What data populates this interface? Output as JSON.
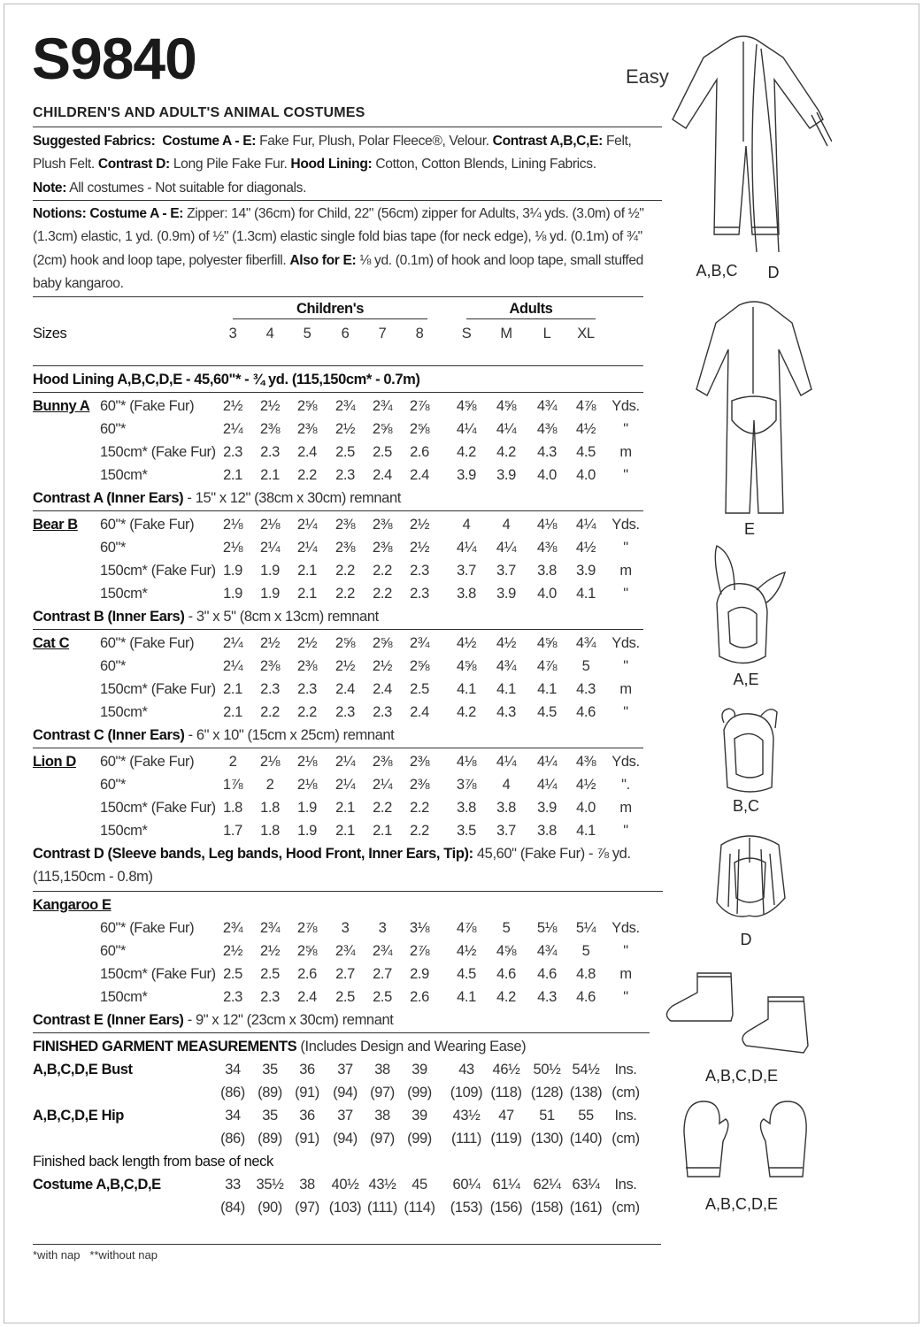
{
  "header": {
    "pattern_number": "S9840",
    "difficulty": "Easy",
    "title": "CHILDREN'S AND ADULT'S ANIMAL COSTUMES"
  },
  "fabrics": {
    "label": "Suggested Fabrics:",
    "costume_label": "Costume A - E:",
    "costume_text": " Fake Fur, Plush, Polar Fleece®, Velour. ",
    "contrast_ace_label": "Contrast A,B,C,E:",
    "contrast_ace_text": " Felt, Plush Felt. ",
    "contrast_d_label": "Contrast D:",
    "contrast_d_text": " Long Pile Fake Fur. ",
    "hood_label": "Hood Lining:",
    "hood_text": " Cotton, Cotton Blends, Lining Fabrics.",
    "note_label": "Note:",
    "note_text": " All costumes - Not suitable for diagonals."
  },
  "notions": {
    "label": "Notions:",
    "costume_label": "Costume A - E:",
    "text": " Zipper: 14\" (36cm) for Child, 22\" (56cm) zipper for Adults, 3¼ yds. (3.0m) of ½\" (1.3cm) elastic, 1 yd. (0.9m) of ½\" (1.3cm) elastic single fold bias tape (for neck edge), ⅛ yd. (0.1m) of ¾\" (2cm) hook and loop tape, polyester fiberfill. ",
    "also_label": "Also for E:",
    "also_text": " ⅛ yd. (0.1m) of hook and loop tape, small stuffed baby kangaroo."
  },
  "sizes": {
    "label": "Sizes",
    "children_label": "Children's",
    "adults_label": "Adults",
    "values": [
      "3",
      "4",
      "5",
      "6",
      "7",
      "8",
      "S",
      "M",
      "L",
      "XL"
    ]
  },
  "hood_lining": "Hood Lining A,B,C,D,E - 45,60\"* - ¾ yd. (115,150cm* - 0.7m)",
  "costumes": [
    {
      "name": "Bunny A",
      "rows": [
        {
          "fabric": "60\"* (Fake Fur)",
          "values": [
            "2½",
            "2½",
            "2⅝",
            "2¾",
            "2¾",
            "2⅞",
            "4⅝",
            "4⅝",
            "4¾",
            "4⅞"
          ],
          "unit": "Yds."
        },
        {
          "fabric": "60\"*",
          "values": [
            "2¼",
            "2⅜",
            "2⅜",
            "2½",
            "2⅝",
            "2⅝",
            "4¼",
            "4¼",
            "4⅜",
            "4½"
          ],
          "unit": "\""
        },
        {
          "fabric": "150cm* (Fake Fur)",
          "values": [
            "2.3",
            "2.3",
            "2.4",
            "2.5",
            "2.5",
            "2.6",
            "4.2",
            "4.2",
            "4.3",
            "4.5"
          ],
          "unit": "m"
        },
        {
          "fabric": "150cm*",
          "values": [
            "2.1",
            "2.1",
            "2.2",
            "2.3",
            "2.4",
            "2.4",
            "3.9",
            "3.9",
            "4.0",
            "4.0"
          ],
          "unit": "\""
        }
      ],
      "contrast": [
        "Contrast A (Inner Ears)",
        " - 15\" x 12\" (38cm x 30cm) remnant"
      ]
    },
    {
      "name": "Bear B",
      "rows": [
        {
          "fabric": "60\"* (Fake Fur)",
          "values": [
            "2⅛",
            "2⅛",
            "2¼",
            "2⅜",
            "2⅜",
            "2½",
            "4",
            "4",
            "4⅛",
            "4¼"
          ],
          "unit": "Yds."
        },
        {
          "fabric": "60\"*",
          "values": [
            "2⅛",
            "2¼",
            "2¼",
            "2⅜",
            "2⅜",
            "2½",
            "4¼",
            "4¼",
            "4⅜",
            "4½"
          ],
          "unit": "\""
        },
        {
          "fabric": "150cm* (Fake Fur)",
          "values": [
            "1.9",
            "1.9",
            "2.1",
            "2.2",
            "2.2",
            "2.3",
            "3.7",
            "3.7",
            "3.8",
            "3.9"
          ],
          "unit": "m"
        },
        {
          "fabric": "150cm*",
          "values": [
            "1.9",
            "1.9",
            "2.1",
            "2.2",
            "2.2",
            "2.3",
            "3.8",
            "3.9",
            "4.0",
            "4.1"
          ],
          "unit": "\""
        }
      ],
      "contrast": [
        "Contrast B (Inner Ears)",
        " - 3\" x 5\" (8cm x 13cm) remnant"
      ]
    },
    {
      "name": "Cat C",
      "rows": [
        {
          "fabric": "60\"* (Fake Fur)",
          "values": [
            "2¼",
            "2½",
            "2½",
            "2⅝",
            "2⅝",
            "2¾",
            "4½",
            "4½",
            "4⅝",
            "4¾"
          ],
          "unit": "Yds."
        },
        {
          "fabric": "60\"*",
          "values": [
            "2¼",
            "2⅜",
            "2⅜",
            "2½",
            "2½",
            "2⅝",
            "4⅝",
            "4¾",
            "4⅞",
            "5"
          ],
          "unit": "\""
        },
        {
          "fabric": "150cm* (Fake Fur)",
          "values": [
            "2.1",
            "2.3",
            "2.3",
            "2.4",
            "2.4",
            "2.5",
            "4.1",
            "4.1",
            "4.1",
            "4.3"
          ],
          "unit": "m"
        },
        {
          "fabric": "150cm*",
          "values": [
            "2.1",
            "2.2",
            "2.2",
            "2.3",
            "2.3",
            "2.4",
            "4.2",
            "4.3",
            "4.5",
            "4.6"
          ],
          "unit": "\""
        }
      ],
      "contrast": [
        "Contrast C (Inner Ears)",
        " - 6\" x 10\" (15cm x 25cm) remnant"
      ]
    },
    {
      "name": "Lion D",
      "rows": [
        {
          "fabric": "60\"* (Fake Fur)",
          "values": [
            "2",
            "2⅛",
            "2⅛",
            "2¼",
            "2⅜",
            "2⅜",
            "4⅛",
            "4¼",
            "4¼",
            "4⅜"
          ],
          "unit": "Yds."
        },
        {
          "fabric": "60\"*",
          "values": [
            "1⅞",
            "2",
            "2⅛",
            "2¼",
            "2¼",
            "2⅜",
            "3⅞",
            "4",
            "4¼",
            "4½"
          ],
          "unit": "\"."
        },
        {
          "fabric": "150cm* (Fake Fur)",
          "values": [
            "1.8",
            "1.8",
            "1.9",
            "2.1",
            "2.2",
            "2.2",
            "3.8",
            "3.8",
            "3.9",
            "4.0"
          ],
          "unit": "m"
        },
        {
          "fabric": "150cm*",
          "values": [
            "1.7",
            "1.8",
            "1.9",
            "2.1",
            "2.1",
            "2.2",
            "3.5",
            "3.7",
            "3.8",
            "4.1"
          ],
          "unit": "\""
        }
      ],
      "contrast": [
        "Contrast D (Sleeve bands, Leg bands, Hood Front, Inner Ears, Tip):",
        " 45,60\" (Fake Fur) - ⅞ yd."
      ],
      "contrast_line2": "(115,150cm - 0.8m)"
    },
    {
      "name": "Kangaroo E",
      "rows": [
        {
          "fabric": "60\"* (Fake Fur)",
          "values": [
            "2¾",
            "2¾",
            "2⅞",
            "3",
            "3",
            "3⅛",
            "4⅞",
            "5",
            "5⅛",
            "5¼"
          ],
          "unit": "Yds."
        },
        {
          "fabric": "60\"*",
          "values": [
            "2½",
            "2½",
            "2⅝",
            "2¾",
            "2¾",
            "2⅞",
            "4½",
            "4⅝",
            "4¾",
            "5"
          ],
          "unit": "\""
        },
        {
          "fabric": "150cm* (Fake Fur)",
          "values": [
            "2.5",
            "2.5",
            "2.6",
            "2.7",
            "2.7",
            "2.9",
            "4.5",
            "4.6",
            "4.6",
            "4.8"
          ],
          "unit": "m"
        },
        {
          "fabric": "150cm*",
          "values": [
            "2.3",
            "2.3",
            "2.4",
            "2.5",
            "2.5",
            "2.6",
            "4.1",
            "4.2",
            "4.3",
            "4.6"
          ],
          "unit": "\""
        }
      ],
      "contrast": [
        "Contrast E (Inner Ears)",
        " - 9\" x 12\" (23cm x 30cm) remnant"
      ]
    }
  ],
  "measurements": {
    "title": "FINISHED GARMENT MEASUREMENTS",
    "title_note": " (Includes Design and Wearing Ease)",
    "rows": [
      {
        "label": "A,B,C,D,E Bust",
        "ins": [
          "34",
          "35",
          "36",
          "37",
          "38",
          "39",
          "43",
          "46½",
          "50½",
          "54½"
        ],
        "cm": [
          "(86)",
          "(89)",
          "(91)",
          "(94)",
          "(97)",
          "(99)",
          "(109)",
          "(118)",
          "(128)",
          "(138)"
        ]
      },
      {
        "label": "A,B,C,D,E Hip",
        "ins": [
          "34",
          "35",
          "36",
          "37",
          "38",
          "39",
          "43½",
          "47",
          "51",
          "55"
        ],
        "cm": [
          "(86)",
          "(89)",
          "(91)",
          "(94)",
          "(97)",
          "(99)",
          "(111)",
          "(119)",
          "(130)",
          "(140)"
        ]
      }
    ],
    "back_length_title": "Finished back length from base of neck",
    "back_length": {
      "label": "Costume A,B,C,D,E",
      "ins": [
        "33",
        "35½",
        "38",
        "40½",
        "43½",
        "45",
        "60¼",
        "61¼",
        "62¼",
        "63¼"
      ],
      "cm": [
        "(84)",
        "(90)",
        "(97)",
        "(103)",
        "(111)",
        "(114)",
        "(153)",
        "(156)",
        "(158)",
        "(161)"
      ]
    },
    "unit_ins": "Ins.",
    "unit_cm": "(cm)"
  },
  "footnote": "*with nap   **without nap",
  "illustrations": [
    {
      "id": "jumpsuit-abcd",
      "labels": [
        "A,B,C",
        "D"
      ]
    },
    {
      "id": "jumpsuit-e",
      "labels": [
        "E"
      ]
    },
    {
      "id": "hood-bunny",
      "labels": [
        "A,E"
      ]
    },
    {
      "id": "hood-bear-cat",
      "labels": [
        "B,C"
      ]
    },
    {
      "id": "hood-lion",
      "labels": [
        "D"
      ]
    },
    {
      "id": "foot-covers",
      "labels": [
        "A,B,C,D,E"
      ]
    },
    {
      "id": "mittens",
      "labels": [
        "A,B,C,D,E"
      ]
    }
  ]
}
